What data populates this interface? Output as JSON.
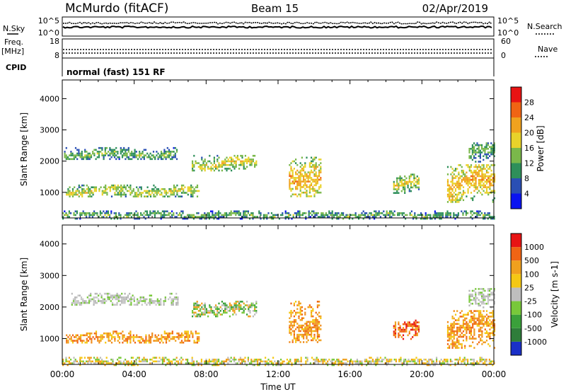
{
  "header": {
    "station": "McMurdo (fitACF)",
    "beam": "Beam 15",
    "date": "02/Apr/2019"
  },
  "noise_panel": {
    "left_label": "N.Sky",
    "right_label": "N.Search",
    "ticks_left": [
      "10^5",
      "10^0"
    ],
    "ticks_right": [
      "10^5",
      "10^0"
    ]
  },
  "freq_panel": {
    "left_label_1": "Freq.",
    "left_label_2": "[MHz]",
    "right_label": "Nave",
    "ticks_left": [
      "18",
      "8"
    ],
    "ticks_right": [
      "60",
      "0"
    ]
  },
  "cpid": {
    "label": "CPID",
    "value": "normal (fast) 151 RF"
  },
  "chart_data": [
    {
      "type": "heatmap",
      "name": "power",
      "ylabel": "Slant Range [km]",
      "yticks": [
        "1000",
        "2000",
        "3000",
        "4000"
      ],
      "ylim": [
        180,
        4600
      ],
      "xlim_hours": [
        0,
        24
      ],
      "colorbar": {
        "label": "Power [dB]",
        "ticks": [
          "4",
          "8",
          "12",
          "16",
          "20",
          "24",
          "28"
        ],
        "colors": [
          "#0a14f0",
          "#2a4fb4",
          "#2e8f5a",
          "#7ab84a",
          "#e8d22a",
          "#f0a21e",
          "#f06414",
          "#e81414"
        ]
      },
      "echo_regions": [
        {
          "t": [
            0.1,
            6.4
          ],
          "r": [
            2050,
            2450
          ],
          "level": 2
        },
        {
          "t": [
            0.2,
            7.6
          ],
          "r": [
            850,
            1250
          ],
          "level": 3
        },
        {
          "t": [
            7.2,
            10.8
          ],
          "r": [
            1700,
            2200
          ],
          "level": 3
        },
        {
          "t": [
            12.6,
            14.4
          ],
          "r": [
            900,
            2200
          ],
          "level": 4
        },
        {
          "t": [
            18.4,
            19.8
          ],
          "r": [
            1000,
            1600
          ],
          "level": 3
        },
        {
          "t": [
            21.4,
            24.0
          ],
          "r": [
            700,
            1900
          ],
          "level": 4
        },
        {
          "t": [
            22.6,
            24.0
          ],
          "r": [
            2000,
            2600
          ],
          "level": 2
        },
        {
          "t": [
            0.0,
            24.0
          ],
          "r": [
            180,
            420
          ],
          "level": 2
        }
      ]
    },
    {
      "type": "heatmap",
      "name": "velocity",
      "ylabel": "Slant Range [km]",
      "yticks": [
        "1000",
        "2000",
        "3000",
        "4000"
      ],
      "ylim": [
        180,
        4600
      ],
      "xlim_hours": [
        0,
        24
      ],
      "xticks": [
        "00:00",
        "04:00",
        "08:00",
        "12:00",
        "16:00",
        "20:00",
        "00:00"
      ],
      "xlabel": "Time UT",
      "colorbar": {
        "label": "Velocity [m s-1]",
        "ticks": [
          "1000",
          "500",
          "100",
          "25",
          "-25",
          "-100",
          "-500",
          "-1000"
        ],
        "colors": [
          "#1a30c8",
          "#2e7d3a",
          "#3aa03a",
          "#78c83a",
          "#bebebe",
          "#f5c814",
          "#f0a01e",
          "#f06414",
          "#e81414"
        ]
      },
      "echo_regions": [
        {
          "t": [
            0.5,
            6.4
          ],
          "r": [
            2050,
            2450
          ],
          "level": "grey"
        },
        {
          "t": [
            0.2,
            7.6
          ],
          "r": [
            850,
            1250
          ],
          "level": "orange"
        },
        {
          "t": [
            7.2,
            10.8
          ],
          "r": [
            1700,
            2200
          ],
          "level": "green"
        },
        {
          "t": [
            12.6,
            14.4
          ],
          "r": [
            900,
            2200
          ],
          "level": "orange"
        },
        {
          "t": [
            18.4,
            19.8
          ],
          "r": [
            1000,
            1600
          ],
          "level": "red"
        },
        {
          "t": [
            21.4,
            24.0
          ],
          "r": [
            700,
            1900
          ],
          "level": "orange"
        },
        {
          "t": [
            22.6,
            24.0
          ],
          "r": [
            2000,
            2600
          ],
          "level": "grey"
        },
        {
          "t": [
            0.0,
            24.0
          ],
          "r": [
            180,
            420
          ],
          "level": "yellow"
        }
      ]
    }
  ]
}
